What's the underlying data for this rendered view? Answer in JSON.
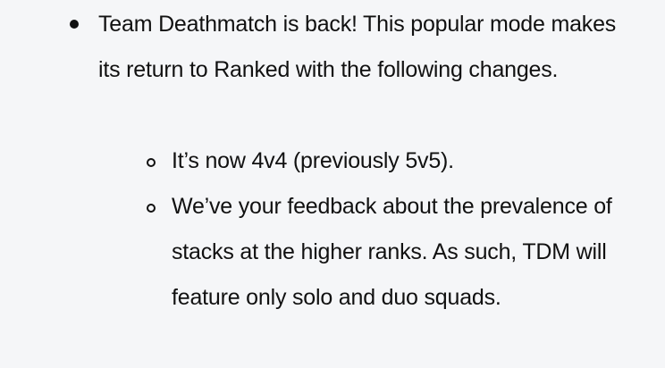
{
  "items": [
    {
      "text": "Team Deathmatch is back! This popular mode makes its return to Ranked with the following changes.",
      "subitems": [
        "It’s now 4v4 (previously 5v5).",
        "We’ve your feedback about the prevalence of stacks at the higher ranks. As such, TDM will feature only solo and duo squads."
      ]
    }
  ]
}
